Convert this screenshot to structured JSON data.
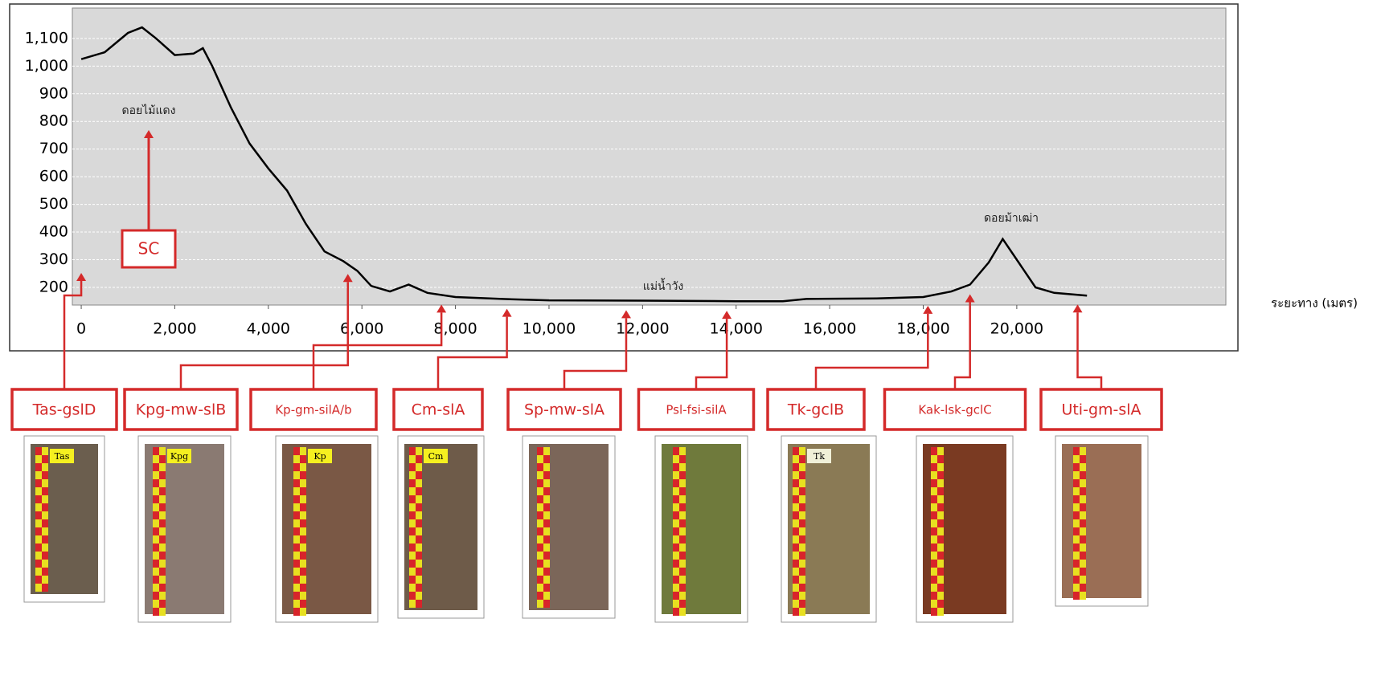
{
  "chart_data": {
    "type": "line",
    "x_label": "ระยะทาง (เมตร)",
    "x": [
      0,
      500,
      1000,
      1300,
      1600,
      2000,
      2400,
      2600,
      2800,
      3200,
      3600,
      4000,
      4400,
      4800,
      5200,
      5600,
      5900,
      6200,
      6600,
      7000,
      7400,
      8000,
      9000,
      10000,
      12000,
      14000,
      15000,
      15500,
      17000,
      18000,
      18600,
      19000,
      19400,
      19700,
      20000,
      20400,
      20800,
      21500
    ],
    "values": [
      1025,
      1050,
      1120,
      1140,
      1100,
      1040,
      1045,
      1065,
      1000,
      850,
      720,
      630,
      550,
      430,
      330,
      295,
      260,
      205,
      185,
      210,
      180,
      165,
      158,
      153,
      152,
      150,
      150,
      158,
      160,
      165,
      185,
      210,
      290,
      375,
      300,
      200,
      180,
      170
    ],
    "color": "#000000",
    "xlim": [
      -190,
      24470
    ],
    "ylim": [
      136,
      1210
    ],
    "xticks": [
      0,
      {
        "value": 2000,
        "label": "2,000"
      },
      {
        "value": 4000,
        "label": "4,000"
      },
      {
        "value": 6000,
        "label": "6,000"
      },
      {
        "value": 8000,
        "label": "8,000"
      },
      {
        "value": 10000,
        "label": "10,000"
      },
      {
        "value": 12000,
        "label": "12,000"
      },
      {
        "value": 14000,
        "label": "14,000"
      },
      {
        "value": 16000,
        "label": "16,000"
      },
      {
        "value": 18000,
        "label": "18,000"
      },
      {
        "value": 20000,
        "label": "20,000"
      }
    ],
    "yticks": [
      200,
      300,
      400,
      500,
      600,
      700,
      800,
      900,
      {
        "value": 1000,
        "label": "1,000"
      },
      {
        "value": 1100,
        "label": "1,100"
      }
    ],
    "grid": true,
    "annotations": [
      "ดอยไม้แดง",
      "แม่น้ำวัง",
      "ดอยม้าเฒ่า",
      "SC"
    ],
    "soil_profiles": [
      {
        "label": "Tas-gslD",
        "tag": "Tas",
        "distance": 0
      },
      {
        "label": "Kpg-mw-slB",
        "tag": "Kpg",
        "distance": 5700
      },
      {
        "label": "Kp-gm-silA/b",
        "tag": "Kp",
        "distance": 7700
      },
      {
        "label": "Cm-slA",
        "tag": "Cm",
        "distance": 9100
      },
      {
        "label": "Sp-mw-slA",
        "distance": 11650
      },
      {
        "label": "Psl-fsi-silA",
        "distance": 13800
      },
      {
        "label": "Tk-gclB",
        "tag": "Tk",
        "distance": 18100
      },
      {
        "label": "Kak-lsk-gclC",
        "distance": 19000
      },
      {
        "label": "Uti-gm-slA",
        "distance": 21300
      }
    ]
  }
}
